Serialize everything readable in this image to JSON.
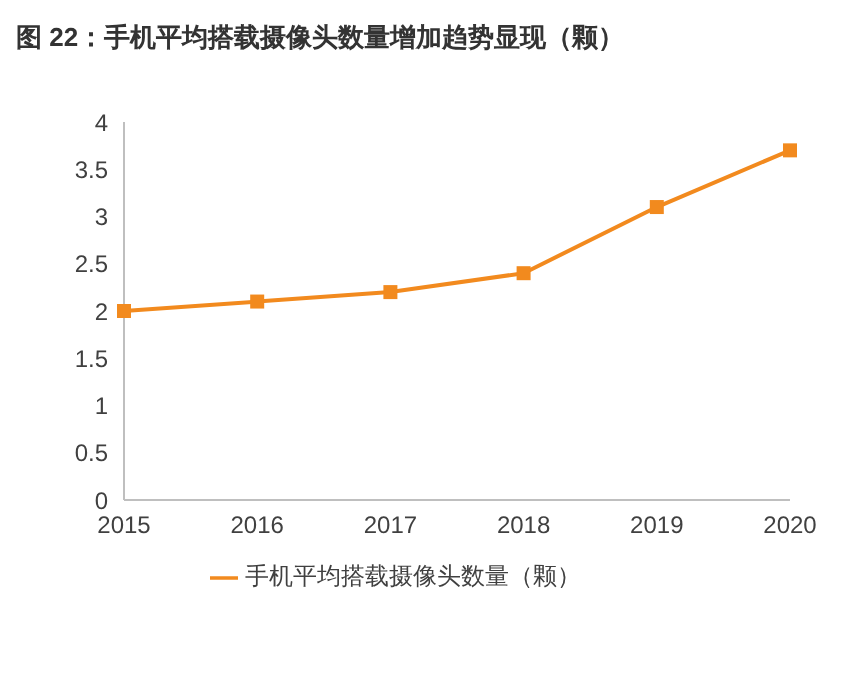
{
  "chart_data": {
    "type": "line",
    "title": "图 22：手机平均搭载摄像头数量增加趋势显现（颗）",
    "categories": [
      "2015",
      "2016",
      "2017",
      "2018",
      "2019",
      "2020"
    ],
    "series": [
      {
        "name": "手机平均搭载摄像头数量（颗）",
        "color": "#f28a1e",
        "values": [
          2.0,
          2.1,
          2.2,
          2.4,
          3.1,
          3.7
        ]
      }
    ],
    "ylim": [
      0,
      4
    ],
    "yticks": [
      0,
      0.5,
      1,
      1.5,
      2,
      2.5,
      3,
      3.5,
      4
    ],
    "grid": false,
    "legend": "bottom",
    "marker": "square",
    "line_style": "solid"
  }
}
